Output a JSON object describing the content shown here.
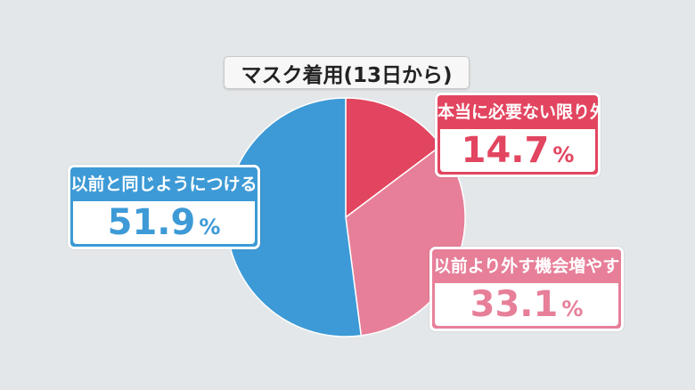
{
  "chart_data": {
    "type": "pie",
    "title": "マスク着用(13日から)",
    "slices": [
      {
        "label": "本当に必要ない限り外す",
        "value": 14.7,
        "display": "14.7",
        "color": "#e2455f"
      },
      {
        "label": "以前より外す機会増やす",
        "value": 33.1,
        "display": "33.1",
        "color": "#e77f99"
      },
      {
        "label": "以前と同じようにつける",
        "value": 51.9,
        "display": "51.9",
        "color": "#3d9ad6"
      }
    ],
    "unit": "%"
  }
}
